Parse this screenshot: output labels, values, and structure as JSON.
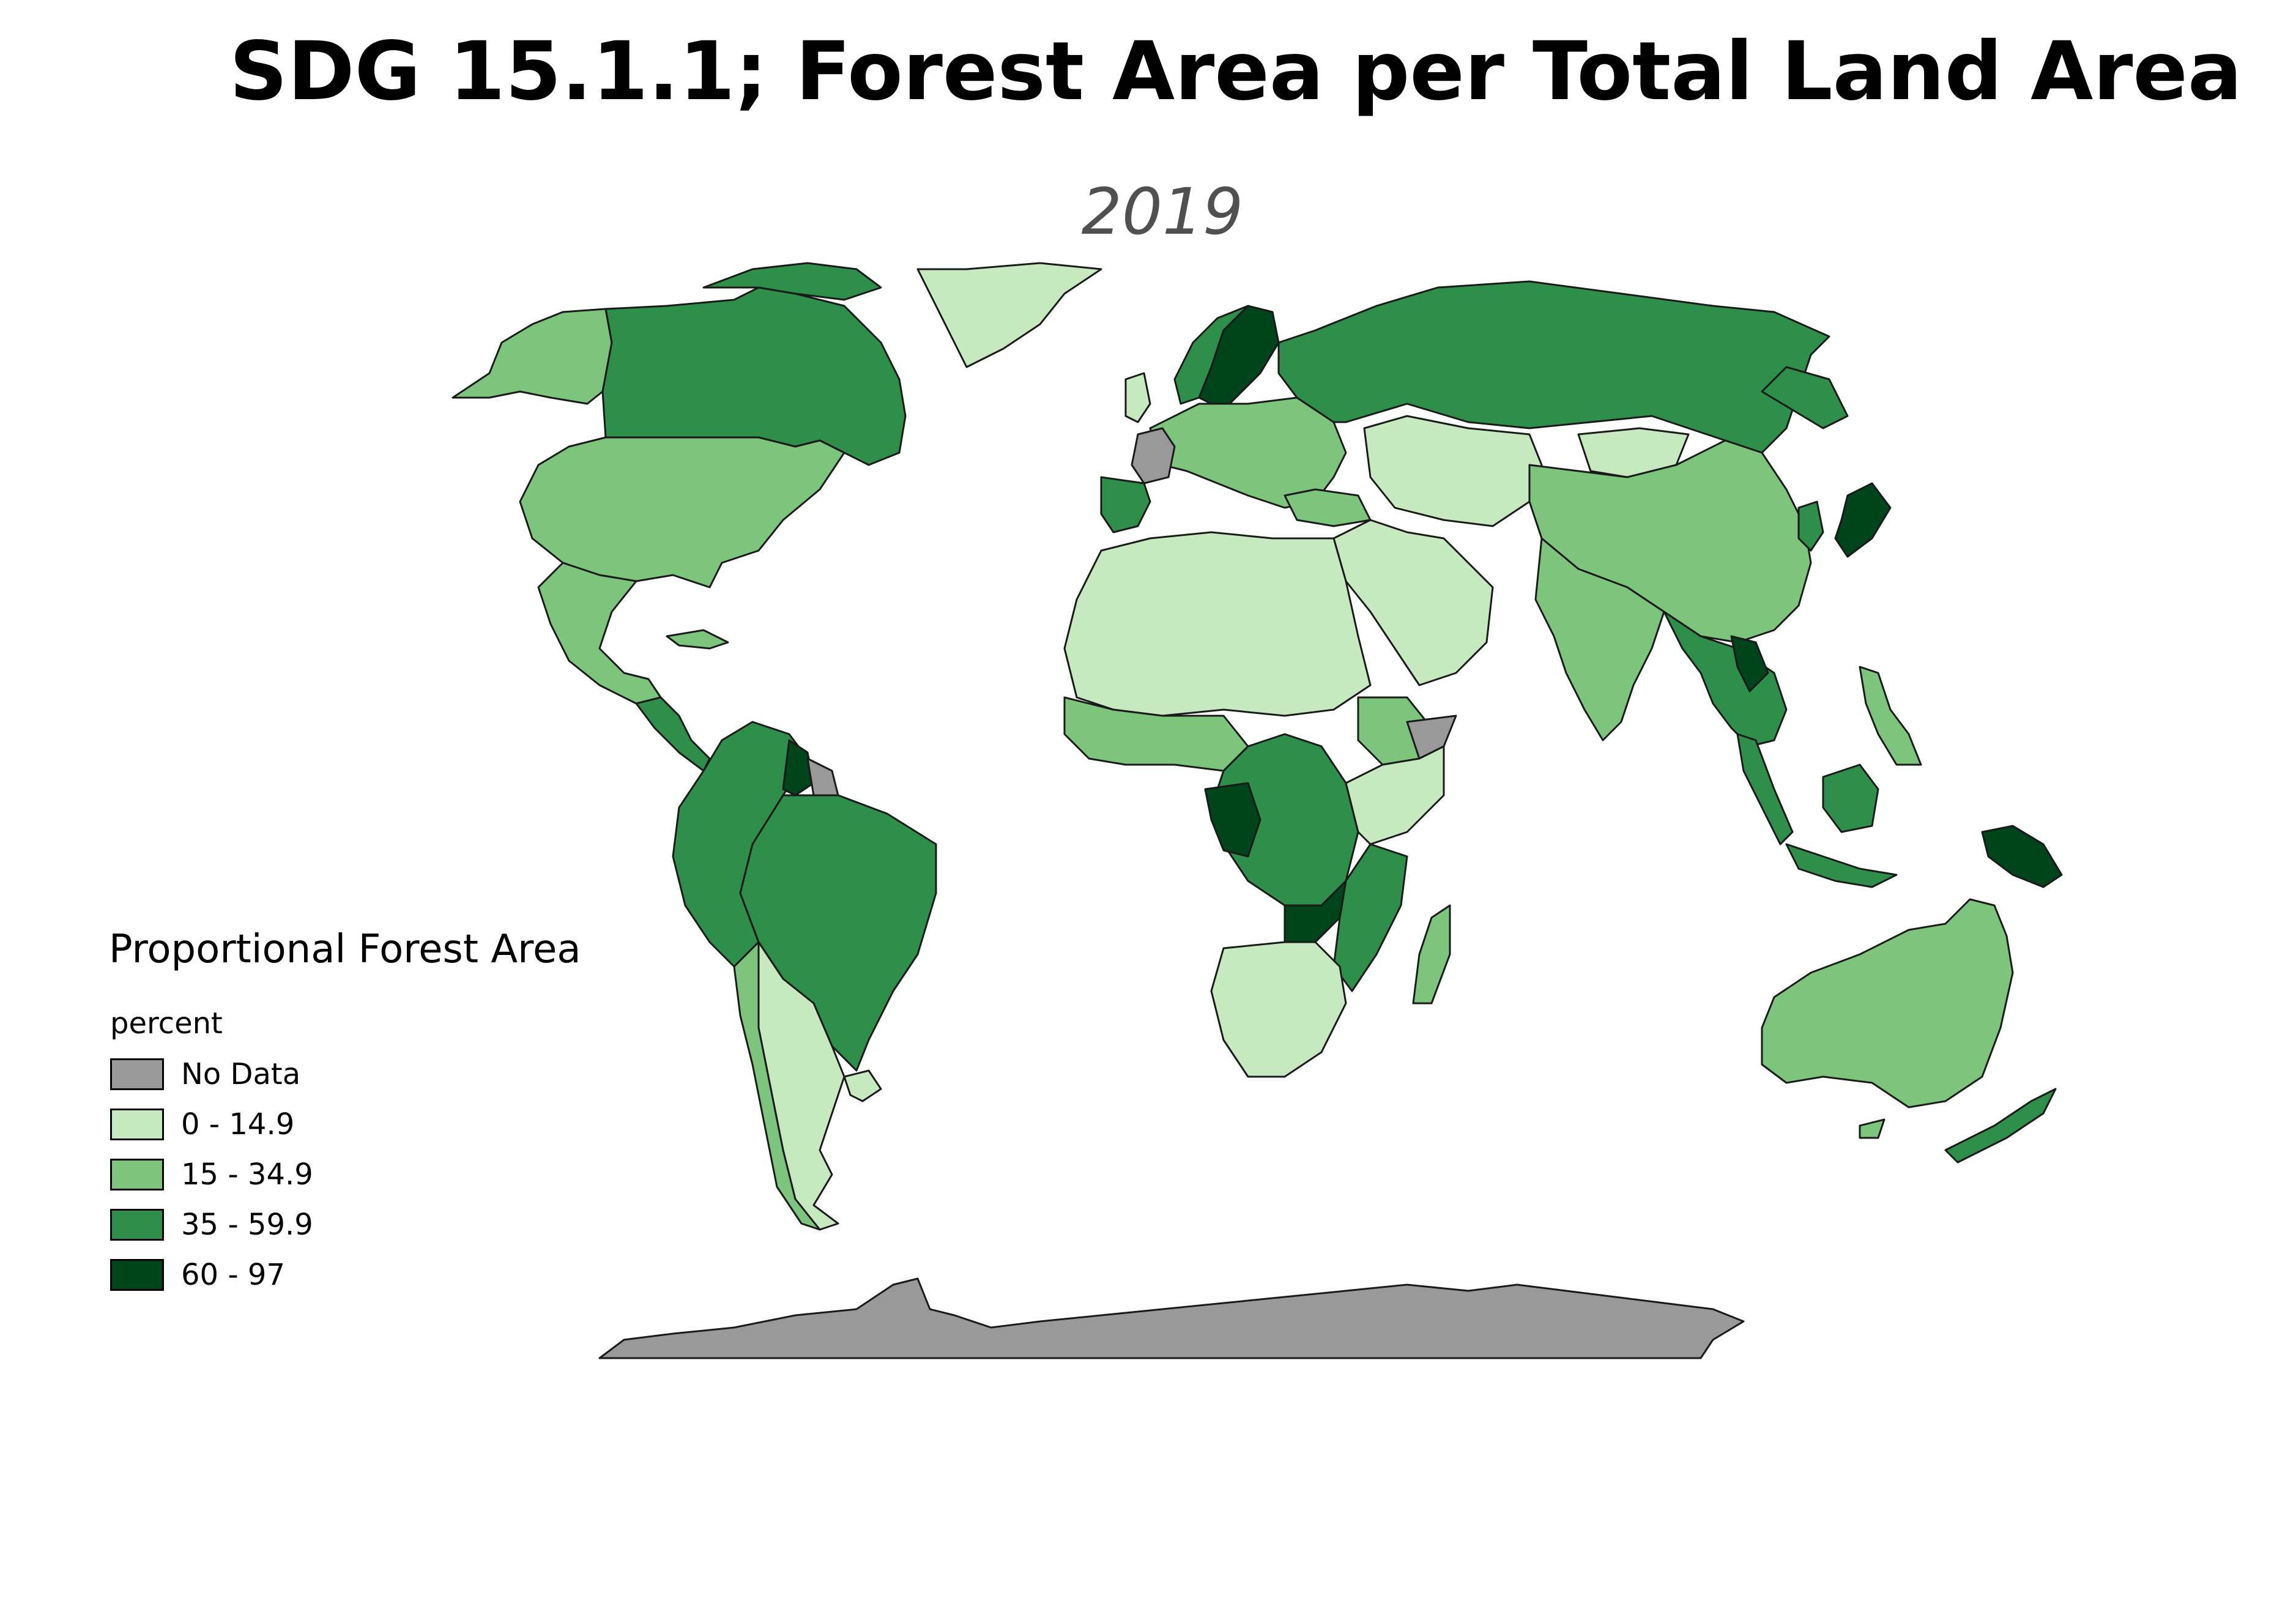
{
  "title": "SDG 15.1.1; Forest Area per Total Land Area",
  "subtitle": "2019",
  "legend": {
    "title": "Proportional Forest Area",
    "unit": "percent",
    "items": [
      {
        "label": "No Data",
        "color": "#999999"
      },
      {
        "label": "0 - 14.9",
        "color": "#c7e9c0"
      },
      {
        "label": "15 - 34.9",
        "color": "#7dc47d"
      },
      {
        "label": "35 - 59.9",
        "color": "#2d8f4a"
      },
      {
        "label": "60 - 97",
        "color": "#00441b"
      }
    ]
  },
  "colors": {
    "no_data": "#999999",
    "class_1": "#c7e9c0",
    "class_2": "#7dc47d",
    "class_3": "#2d8f4a",
    "class_4": "#00441b",
    "border": "#1a1a1a"
  },
  "map_classes": {
    "canada": "class_3",
    "alaska": "class_2",
    "usa": "class_2",
    "mexico": "class_2",
    "central_america": "class_3",
    "greenland": "class_1",
    "south_america_north": "class_3",
    "brazil": "class_3",
    "argentina": "class_1",
    "chile": "class_2",
    "suriname_guyana": "class_4",
    "french_guiana": "no_data",
    "uruguay": "class_1",
    "scandinavia": "class_4",
    "norway": "class_3",
    "europe": "class_2",
    "france": "no_data",
    "iberia": "class_3",
    "russia": "class_3",
    "north_africa": "class_1",
    "west_africa": "class_2",
    "central_africa": "class_3",
    "congo_gabon": "class_4",
    "east_africa": "class_1",
    "ethiopia": "class_2",
    "somalia": "no_data",
    "southern_africa": "class_1",
    "zambia": "class_4",
    "mozambique": "class_3",
    "madagascar": "class_2",
    "middle_east": "class_1",
    "central_asia": "class_1",
    "china": "class_2",
    "mongolia": "class_1",
    "india": "class_2",
    "southeast_asia": "class_3",
    "laos": "class_4",
    "japan": "class_4",
    "korea": "class_3",
    "indonesia": "class_3",
    "papua": "class_4",
    "philippines": "class_2",
    "australia": "class_2",
    "new_zealand": "class_3",
    "antarctica": "no_data"
  }
}
